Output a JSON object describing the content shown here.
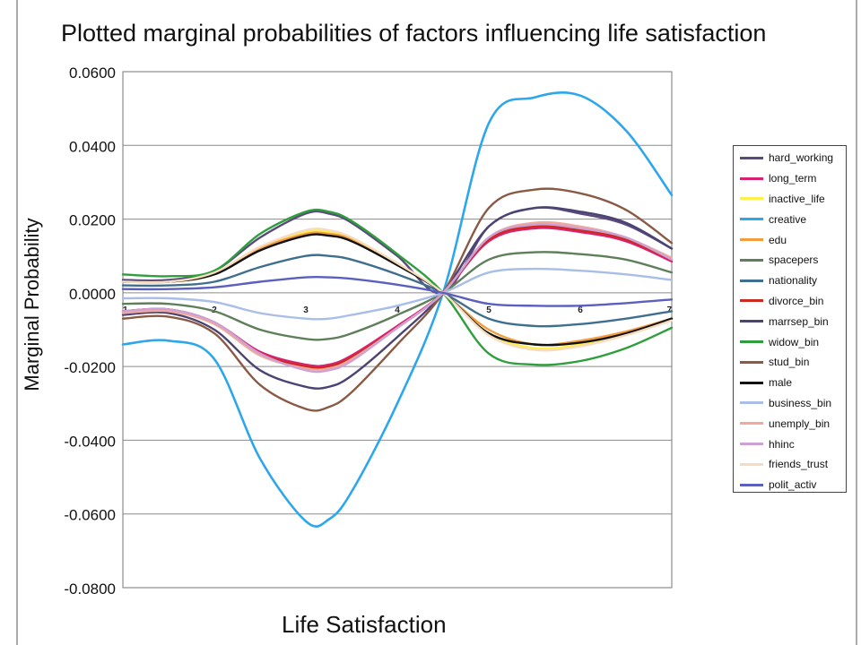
{
  "chart_data": {
    "type": "line",
    "title": "Plotted marginal probabilities of factors influencing life satisfaction",
    "xlabel": "Life Satisfaction",
    "ylabel": "Marginal Probability",
    "x": [
      1,
      1.5,
      2,
      2.5,
      3,
      3.25,
      3.5,
      4,
      4.5,
      5,
      5.5,
      6,
      6.5,
      7
    ],
    "x_ticks": [
      "1",
      "2",
      "3",
      "4",
      "5",
      "6",
      "7"
    ],
    "xlim": [
      1,
      7
    ],
    "ylim": [
      -0.08,
      0.06
    ],
    "y_ticks": [
      "0.0600",
      "0.0400",
      "0.0200",
      "0.0000",
      "-0.0200",
      "-0.0400",
      "-0.0600",
      "-0.0800"
    ],
    "grid": "horizontal",
    "legend_position": "right",
    "series": [
      {
        "name": "hard_working",
        "color": "#5a4a7c",
        "values": [
          0.0035,
          0.0035,
          0.006,
          0.015,
          0.0215,
          0.0215,
          0.019,
          0.01,
          0.0,
          0.018,
          0.023,
          0.0215,
          0.0185,
          0.012
        ]
      },
      {
        "name": "long_term",
        "color": "#d9226e",
        "values": [
          -0.005,
          -0.0045,
          -0.008,
          -0.016,
          -0.0195,
          -0.0195,
          -0.017,
          -0.009,
          0.0,
          0.014,
          0.0175,
          0.0165,
          0.014,
          0.0085
        ]
      },
      {
        "name": "inactive_life",
        "color": "#ffef4a",
        "values": [
          0.003,
          0.003,
          0.005,
          0.012,
          0.0165,
          0.0165,
          0.015,
          0.008,
          0.0,
          -0.011,
          -0.015,
          -0.014,
          -0.011,
          -0.0075
        ]
      },
      {
        "name": "creative",
        "color": "#2ea7ea",
        "values": [
          -0.014,
          -0.013,
          -0.018,
          -0.045,
          -0.062,
          -0.0615,
          -0.054,
          -0.03,
          0.0,
          0.046,
          0.053,
          0.0535,
          0.044,
          0.0265
        ]
      },
      {
        "name": "edu",
        "color": "#f29c3d",
        "values": [
          0.003,
          0.003,
          0.005,
          0.012,
          0.016,
          0.016,
          0.0145,
          0.008,
          0.0,
          -0.01,
          -0.014,
          -0.013,
          -0.0105,
          -0.007
        ]
      },
      {
        "name": "spacepers",
        "color": "#5e7f5a",
        "values": [
          -0.003,
          -0.003,
          -0.005,
          -0.01,
          -0.0125,
          -0.0125,
          -0.011,
          -0.006,
          0.0,
          0.009,
          0.011,
          0.0105,
          0.009,
          0.0055
        ]
      },
      {
        "name": "nationality",
        "color": "#3f6f8e",
        "values": [
          0.002,
          0.002,
          0.003,
          0.007,
          0.01,
          0.01,
          0.009,
          0.005,
          0.0,
          -0.007,
          -0.009,
          -0.0085,
          -0.007,
          -0.005
        ]
      },
      {
        "name": "divorce_bin",
        "color": "#cc2a1e",
        "values": [
          -0.005,
          -0.0045,
          -0.008,
          -0.0165,
          -0.02,
          -0.02,
          -0.0175,
          -0.0095,
          0.0,
          0.0145,
          0.018,
          0.017,
          0.0145,
          0.009
        ]
      },
      {
        "name": "marrsep_bin",
        "color": "#4c4373",
        "values": [
          -0.006,
          -0.0055,
          -0.01,
          -0.021,
          -0.0255,
          -0.0255,
          -0.0225,
          -0.012,
          0.0,
          0.018,
          0.023,
          0.022,
          0.019,
          0.012
        ]
      },
      {
        "name": "widow_bin",
        "color": "#2f9e3c",
        "values": [
          0.005,
          0.0045,
          0.006,
          0.016,
          0.022,
          0.022,
          0.0195,
          0.0105,
          0.0,
          -0.0165,
          -0.0195,
          -0.0185,
          -0.015,
          -0.0095
        ]
      },
      {
        "name": "stud_bin",
        "color": "#8a5a44",
        "values": [
          -0.007,
          -0.0065,
          -0.011,
          -0.025,
          -0.0315,
          -0.031,
          -0.027,
          -0.014,
          0.0,
          0.023,
          0.028,
          0.027,
          0.0225,
          0.0135
        ]
      },
      {
        "name": "male",
        "color": "#111111",
        "values": [
          0.003,
          0.003,
          0.005,
          0.0115,
          0.0155,
          0.0155,
          0.014,
          0.0075,
          0.0,
          -0.011,
          -0.014,
          -0.0135,
          -0.011,
          -0.007
        ]
      },
      {
        "name": "business_bin",
        "color": "#a8bde8",
        "values": [
          -0.0015,
          -0.0015,
          -0.0025,
          -0.0055,
          -0.007,
          -0.007,
          -0.006,
          -0.0035,
          0.0,
          0.0055,
          0.0065,
          0.006,
          0.005,
          0.0035
        ]
      },
      {
        "name": "unemply_bin",
        "color": "#f2a89a",
        "values": [
          -0.0055,
          -0.005,
          -0.0085,
          -0.017,
          -0.0205,
          -0.0205,
          -0.018,
          -0.0095,
          0.0,
          0.015,
          0.019,
          0.018,
          0.015,
          0.0095
        ]
      },
      {
        "name": "hhinc",
        "color": "#cca2d6",
        "values": [
          -0.005,
          -0.0045,
          -0.008,
          -0.0165,
          -0.021,
          -0.021,
          -0.0185,
          -0.0095,
          0.0,
          0.015,
          0.0185,
          0.0175,
          0.015,
          0.009
        ]
      },
      {
        "name": "friends_trust",
        "color": "#f5dcc0",
        "values": [
          0.003,
          0.003,
          0.0055,
          0.0125,
          0.017,
          0.017,
          0.015,
          0.008,
          0.0,
          -0.0115,
          -0.0155,
          -0.0145,
          -0.0115,
          -0.0075
        ]
      },
      {
        "name": "polit_activ",
        "color": "#5a5fc0",
        "values": [
          0.001,
          0.001,
          0.0015,
          0.003,
          0.0042,
          0.0042,
          0.0038,
          0.0022,
          0.0,
          -0.003,
          -0.0035,
          -0.0035,
          -0.0028,
          -0.0018
        ]
      }
    ]
  }
}
